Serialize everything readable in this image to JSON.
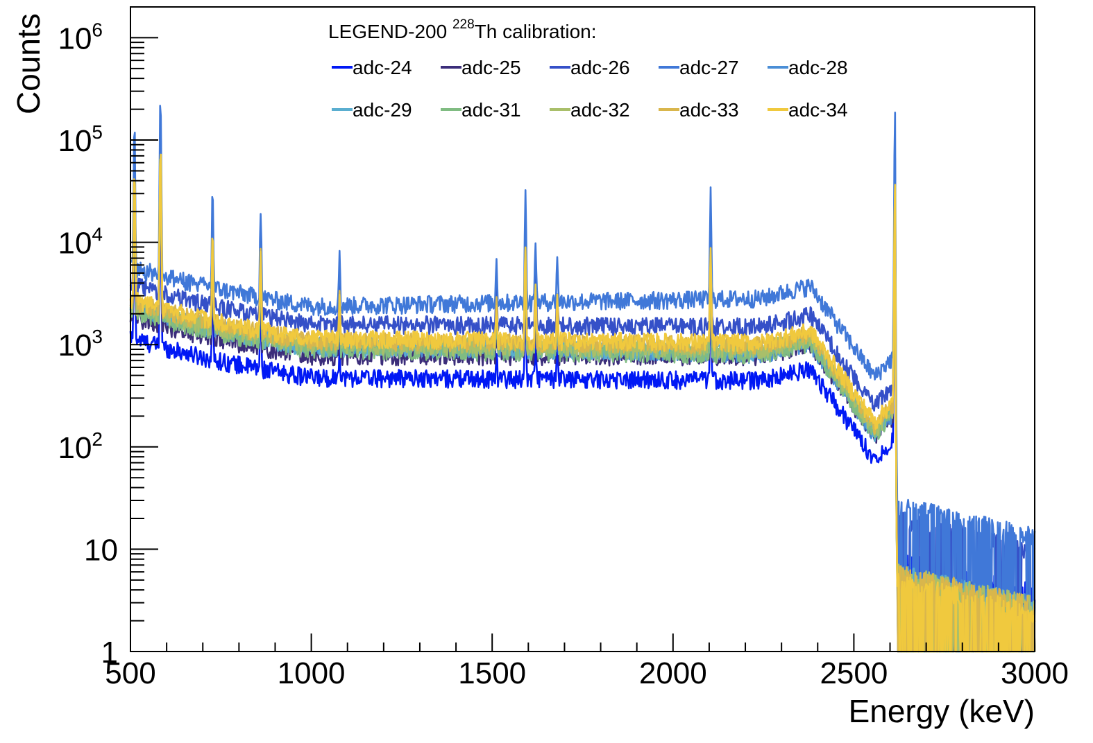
{
  "chart_data": {
    "type": "line",
    "title": "",
    "xlabel": "Energy (keV)",
    "ylabel": "Counts",
    "xlim": [
      500,
      3000
    ],
    "ylim": [
      1,
      2000000
    ],
    "yscale": "log",
    "grid": false,
    "legend_title_parts": [
      "LEGEND-200 ",
      "228",
      "Th calibration:"
    ],
    "legend_placement": "top-center",
    "x_ticks": [
      {
        "value": 500,
        "label": "500"
      },
      {
        "value": 1000,
        "label": "1000"
      },
      {
        "value": 1500,
        "label": "1500"
      },
      {
        "value": 2000,
        "label": "2000"
      },
      {
        "value": 2500,
        "label": "2500"
      },
      {
        "value": 3000,
        "label": "3000"
      }
    ],
    "y_ticks": [
      {
        "value": 1,
        "base": "1",
        "exp": ""
      },
      {
        "value": 10,
        "base": "10",
        "exp": ""
      },
      {
        "value": 100,
        "base": "10",
        "exp": "2"
      },
      {
        "value": 1000,
        "base": "10",
        "exp": "3"
      },
      {
        "value": 10000,
        "base": "10",
        "exp": "4"
      },
      {
        "value": 100000,
        "base": "10",
        "exp": "5"
      },
      {
        "value": 1000000,
        "base": "10",
        "exp": "6"
      }
    ],
    "peaks": [
      {
        "energy": 511,
        "scale": 16
      },
      {
        "energy": 583,
        "scale": 38
      },
      {
        "energy": 727,
        "scale": 6
      },
      {
        "energy": 860,
        "scale": 5
      },
      {
        "energy": 1078,
        "scale": 1.8
      },
      {
        "energy": 1512,
        "scale": 1.5
      },
      {
        "energy": 1592,
        "scale": 8
      },
      {
        "energy": 1620,
        "scale": 2.5
      },
      {
        "energy": 1680,
        "scale": 1.4
      },
      {
        "energy": 2104,
        "scale": 7
      },
      {
        "energy": 2614,
        "scale": 150
      }
    ],
    "series": [
      {
        "name": "adc-24",
        "color": "#0018f5",
        "base_1000": 480,
        "base_2350": 450,
        "tail": 8,
        "peak_factor": 0.7
      },
      {
        "name": "adc-25",
        "color": "#3b2d7a",
        "base_1000": 780,
        "base_2350": 780,
        "tail": 6,
        "peak_factor": 0.8
      },
      {
        "name": "adc-26",
        "color": "#3550c8",
        "base_1000": 1600,
        "base_2350": 1500,
        "tail": 20,
        "peak_factor": 1.0
      },
      {
        "name": "adc-27",
        "color": "#4078d8",
        "base_1000": 2400,
        "base_2350": 2900,
        "tail": 28,
        "peak_factor": 1.4
      },
      {
        "name": "adc-28",
        "color": "#4a8ed6",
        "base_1000": 1000,
        "base_2350": 800,
        "tail": 6,
        "peak_factor": 0.9
      },
      {
        "name": "adc-29",
        "color": "#5aaed0",
        "base_1000": 950,
        "base_2350": 850,
        "tail": 6,
        "peak_factor": 0.9
      },
      {
        "name": "adc-31",
        "color": "#80bc82",
        "base_1000": 900,
        "base_2350": 800,
        "tail": 5,
        "peak_factor": 1.0
      },
      {
        "name": "adc-32",
        "color": "#a9bf6a",
        "base_1000": 1000,
        "base_2350": 900,
        "tail": 6,
        "peak_factor": 0.9
      },
      {
        "name": "adc-33",
        "color": "#d9b64c",
        "base_1000": 1100,
        "base_2350": 1000,
        "tail": 6,
        "peak_factor": 0.9
      },
      {
        "name": "adc-34",
        "color": "#f0c93e",
        "base_1000": 1150,
        "base_2350": 1050,
        "tail": 5,
        "peak_factor": 1.0
      }
    ]
  }
}
